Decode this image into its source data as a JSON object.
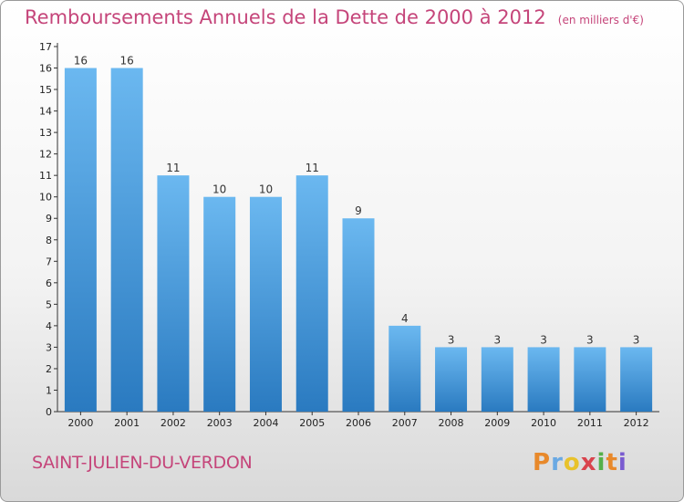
{
  "title": "Remboursements Annuels de la Dette de 2000 à 2012",
  "subtitle": "(en milliers d'€)",
  "commune": "SAINT-JULIEN-DU-VERDON",
  "logo": {
    "letters": [
      "P",
      "r",
      "o",
      "x",
      "i",
      "t",
      "i"
    ],
    "colors": [
      "#e8892b",
      "#6aa9e3",
      "#e8c22b",
      "#d9434d",
      "#54b04a",
      "#e8892b",
      "#7a5bd0"
    ]
  },
  "colors": {
    "bar_light": "#6bb8f0",
    "bar_dark": "#2a7ac0",
    "title": "#c5457a"
  },
  "chart_data": {
    "type": "bar",
    "categories": [
      "2000",
      "2001",
      "2002",
      "2003",
      "2004",
      "2005",
      "2006",
      "2007",
      "2008",
      "2009",
      "2010",
      "2011",
      "2012"
    ],
    "values": [
      16,
      16,
      11,
      10,
      10,
      11,
      9,
      4,
      3,
      3,
      3,
      3,
      3
    ],
    "title": "Remboursements Annuels de la Dette de 2000 à 2012",
    "xlabel": "",
    "ylabel": "",
    "ylim": [
      0,
      17
    ],
    "yticks": [
      0,
      1,
      2,
      3,
      4,
      5,
      6,
      7,
      8,
      9,
      10,
      11,
      12,
      13,
      14,
      15,
      16,
      17
    ],
    "grid": false
  }
}
